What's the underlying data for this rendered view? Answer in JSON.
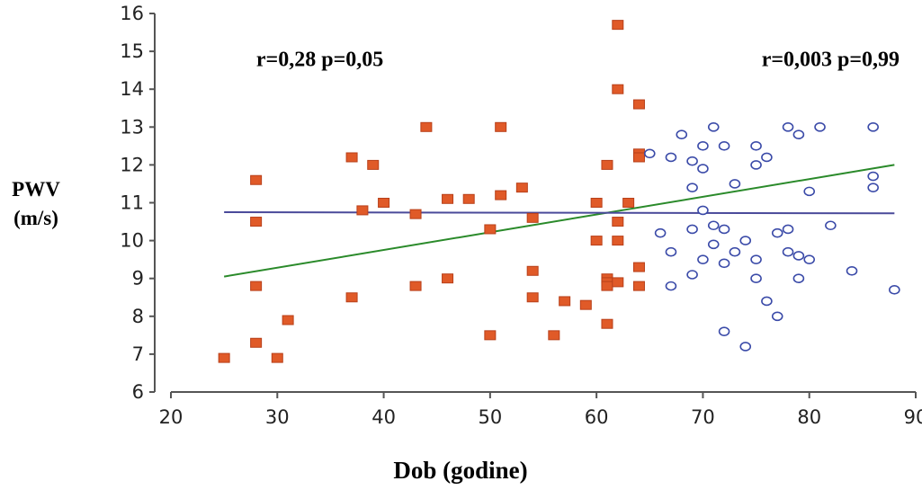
{
  "chart_data": {
    "type": "scatter",
    "xlabel": "Dob (godine)",
    "ylabel": [
      "PWV",
      "(m/s)"
    ],
    "xlim": [
      20,
      90
    ],
    "ylim": [
      6,
      16
    ],
    "x_ticks": [
      "20",
      "30",
      "40",
      "50",
      "60",
      "70",
      "80",
      "90"
    ],
    "y_ticks": [
      "6",
      "7",
      "8",
      "9",
      "10",
      "11",
      "12",
      "13",
      "14",
      "15",
      "16"
    ],
    "grid": false,
    "annotations": [
      {
        "text": "r=0,28 p=0,05",
        "x": 34,
        "y": 14.8
      },
      {
        "text": "r=0,003 p=0,99",
        "x": 82,
        "y": 14.8
      }
    ],
    "series": [
      {
        "marker": "square",
        "color": "#e05a28",
        "points": [
          [
            25,
            6.9
          ],
          [
            28,
            11.6
          ],
          [
            28,
            10.5
          ],
          [
            28,
            8.8
          ],
          [
            28,
            7.3
          ],
          [
            30,
            6.9
          ],
          [
            31,
            7.9
          ],
          [
            37,
            12.2
          ],
          [
            37,
            8.5
          ],
          [
            38,
            10.8
          ],
          [
            39,
            12.0
          ],
          [
            40,
            11.0
          ],
          [
            43,
            10.7
          ],
          [
            43,
            8.8
          ],
          [
            44,
            13.0
          ],
          [
            46,
            11.1
          ],
          [
            46,
            9.0
          ],
          [
            48,
            11.1
          ],
          [
            50,
            10.3
          ],
          [
            50,
            7.5
          ],
          [
            51,
            13.0
          ],
          [
            51,
            11.2
          ],
          [
            53,
            11.4
          ],
          [
            54,
            10.6
          ],
          [
            54,
            9.2
          ],
          [
            54,
            8.5
          ],
          [
            56,
            7.5
          ],
          [
            57,
            8.4
          ],
          [
            59,
            8.3
          ],
          [
            60,
            11.0
          ],
          [
            60,
            10.0
          ],
          [
            61,
            12.0
          ],
          [
            61,
            9.0
          ],
          [
            61,
            8.9
          ],
          [
            61,
            8.8
          ],
          [
            61,
            7.8
          ],
          [
            62,
            15.7
          ],
          [
            62,
            14.0
          ],
          [
            62,
            10.5
          ],
          [
            62,
            10.0
          ],
          [
            62,
            8.9
          ],
          [
            63,
            11.0
          ],
          [
            64,
            13.6
          ],
          [
            64,
            12.3
          ],
          [
            64,
            12.2
          ],
          [
            64,
            9.3
          ],
          [
            64,
            8.8
          ]
        ]
      },
      {
        "marker": "circle",
        "color": "#3a4aa8",
        "points": [
          [
            65,
            12.3
          ],
          [
            66,
            10.2
          ],
          [
            67,
            12.2
          ],
          [
            67,
            9.7
          ],
          [
            67,
            8.8
          ],
          [
            68,
            12.8
          ],
          [
            69,
            12.1
          ],
          [
            69,
            11.4
          ],
          [
            69,
            10.3
          ],
          [
            69,
            9.1
          ],
          [
            70,
            12.5
          ],
          [
            70,
            11.9
          ],
          [
            70,
            10.8
          ],
          [
            70,
            9.5
          ],
          [
            71,
            13.0
          ],
          [
            71,
            10.4
          ],
          [
            71,
            9.9
          ],
          [
            72,
            12.5
          ],
          [
            72,
            10.3
          ],
          [
            72,
            9.4
          ],
          [
            72,
            7.6
          ],
          [
            73,
            11.5
          ],
          [
            73,
            9.7
          ],
          [
            74,
            10.0
          ],
          [
            74,
            7.2
          ],
          [
            75,
            12.5
          ],
          [
            75,
            12.0
          ],
          [
            75,
            9.5
          ],
          [
            75,
            9.0
          ],
          [
            76,
            12.2
          ],
          [
            76,
            8.4
          ],
          [
            77,
            10.2
          ],
          [
            77,
            8.0
          ],
          [
            78,
            13.0
          ],
          [
            78,
            10.3
          ],
          [
            78,
            9.7
          ],
          [
            79,
            12.8
          ],
          [
            79,
            9.6
          ],
          [
            79,
            9.0
          ],
          [
            80,
            11.3
          ],
          [
            80,
            9.5
          ],
          [
            81,
            13.0
          ],
          [
            82,
            10.4
          ],
          [
            84,
            9.2
          ],
          [
            86,
            13.0
          ],
          [
            86,
            11.7
          ],
          [
            86,
            11.4
          ],
          [
            88,
            8.7
          ]
        ]
      }
    ],
    "fit_lines": [
      {
        "color": "#2a8a2a",
        "from": [
          25,
          9.05
        ],
        "to": [
          88,
          12.0
        ]
      },
      {
        "color": "#4a4a9a",
        "from": [
          25,
          10.75
        ],
        "to": [
          88,
          10.72
        ]
      }
    ]
  }
}
